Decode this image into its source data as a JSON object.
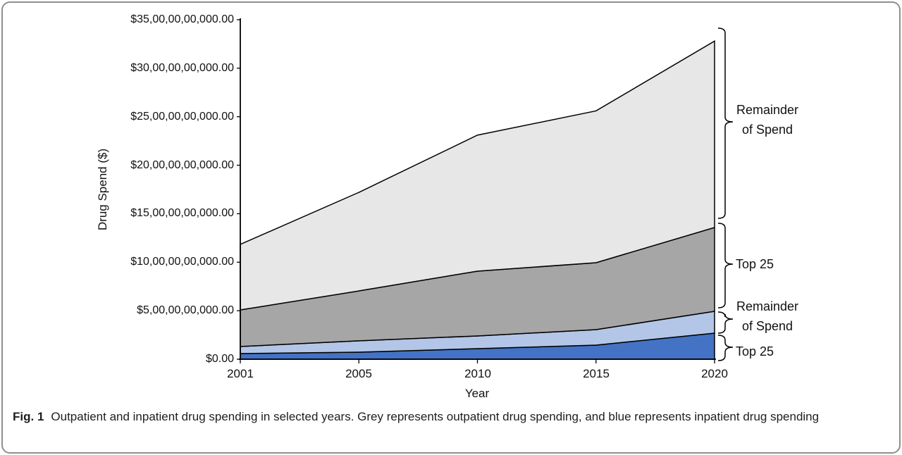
{
  "figure": {
    "caption_label": "Fig. 1",
    "caption_text": "Outpatient and inpatient drug spending in selected years. Grey represents outpatient drug spending, and blue represents inpatient drug spending"
  },
  "chart_data": {
    "type": "area",
    "stacked": true,
    "xlabel": "Year",
    "ylabel": "Drug Spend ($)",
    "x_categories": [
      "2001",
      "2005",
      "2010",
      "2015",
      "2020"
    ],
    "y_tick_labels": [
      "$0.00",
      "$5,00,00,00,000.00",
      "$10,00,00,00,000.00",
      "$15,00,00,00,000.00",
      "$20,00,00,00,000.00",
      "$25,00,00,00,000.00",
      "$30,00,00,00,000.00",
      "$35,00,00,00,000.00"
    ],
    "ylim_billions": [
      0,
      35
    ],
    "grid": false,
    "legend_position": "right-braces",
    "axis_color": "#000000",
    "series": [
      {
        "name": "Top 25 (inpatient)",
        "color": "#4472c4",
        "values_billions": [
          0.58,
          0.73,
          1.09,
          1.45,
          2.69
        ]
      },
      {
        "name": "Remainder of Spend (inpatient)",
        "color": "#b4c6e7",
        "values_billions": [
          0.73,
          1.17,
          1.31,
          1.6,
          2.25
        ]
      },
      {
        "name": "Top 25 (outpatient)",
        "color": "#a6a6a6",
        "values_billions": [
          3.77,
          5.14,
          6.68,
          6.9,
          8.64
        ]
      },
      {
        "name": "Remainder of Spend (outpatient)",
        "color": "#e7e7e7",
        "values_billions": [
          6.76,
          10.16,
          14.02,
          15.65,
          19.22
        ]
      }
    ],
    "totals_billions": [
      11.84,
      17.2,
      23.1,
      25.6,
      32.8
    ],
    "annotations": [
      {
        "line1": "Remainder",
        "line2": "of Spend",
        "band": "outpatient-remainder"
      },
      {
        "line1": "Top 25",
        "band": "outpatient-top25"
      },
      {
        "line1": "Remainder",
        "line2": "of Spend",
        "band": "inpatient-remainder"
      },
      {
        "line1": "Top 25",
        "band": "inpatient-top25"
      }
    ]
  },
  "frame_border_color": "#8f8f8f"
}
